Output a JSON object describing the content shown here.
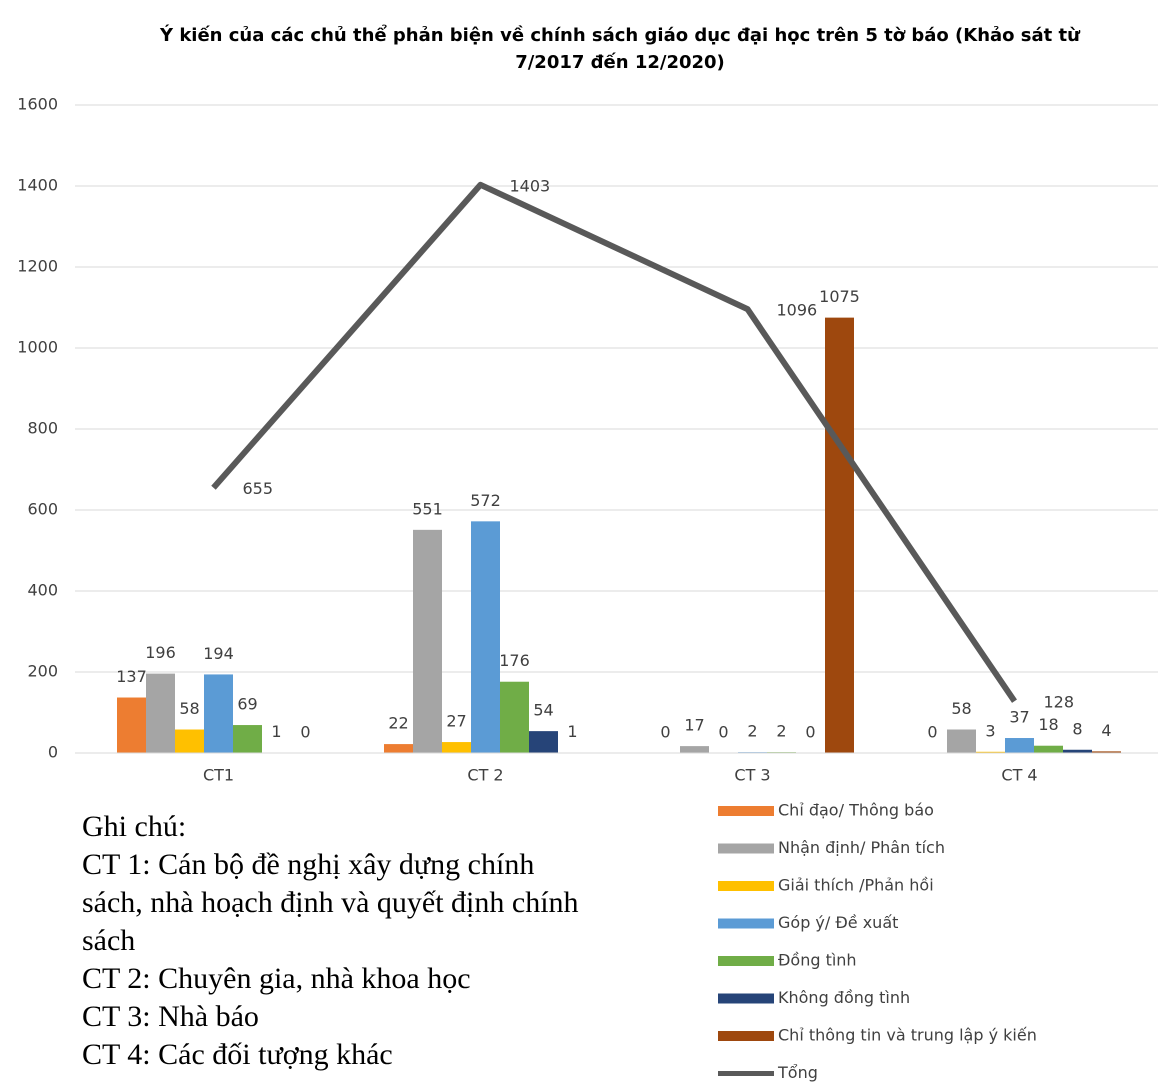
{
  "chart_data": {
    "type": "bar",
    "title": "Ý kiến của các chủ thể phản biện về chính sách giáo dục đại học trên 5 tờ báo (Khảo sát  từ 7/2017 đến 12/2020)",
    "categories": [
      "CT1",
      "CT 2",
      "CT 3",
      "CT 4"
    ],
    "series": [
      {
        "name": "Chỉ đạo/ Thông báo",
        "color": "#ed7d31",
        "values": [
          137,
          22,
          0,
          0
        ]
      },
      {
        "name": "Nhận định/ Phân tích",
        "color": "#a5a5a5",
        "values": [
          196,
          551,
          17,
          58
        ]
      },
      {
        "name": "Giải thích /Phản hồi",
        "color": "#ffc000",
        "values": [
          58,
          27,
          0,
          3
        ]
      },
      {
        "name": "Góp ý/ Đề xuất",
        "color": "#5b9bd5",
        "values": [
          194,
          572,
          2,
          37
        ]
      },
      {
        "name": "Đồng tình",
        "color": "#70ad47",
        "values": [
          69,
          176,
          2,
          18
        ]
      },
      {
        "name": "Không đồng tình",
        "color": "#264478",
        "values": [
          1,
          54,
          0,
          8
        ]
      },
      {
        "name": "Chỉ thông tin và trung lập ý kiến",
        "color": "#9e480e",
        "values": [
          0,
          1,
          1075,
          4
        ]
      },
      {
        "name": "Tổng",
        "type": "line",
        "color": "#595959",
        "values": [
          655,
          1403,
          1096,
          128
        ]
      }
    ],
    "ylim": [
      0,
      1600
    ],
    "yticks": [
      0,
      200,
      400,
      600,
      800,
      1000,
      1200,
      1400,
      1600
    ],
    "grid": true
  },
  "notes": [
    "Ghi chú:",
    "CT 1: Cán bộ đề nghị xây dựng chính sách, nhà hoạch định và quyết định chính sách",
    "CT 2: Chuyên gia, nhà khoa học",
    "CT 3: Nhà báo",
    "CT 4: Các đối tượng khác"
  ]
}
